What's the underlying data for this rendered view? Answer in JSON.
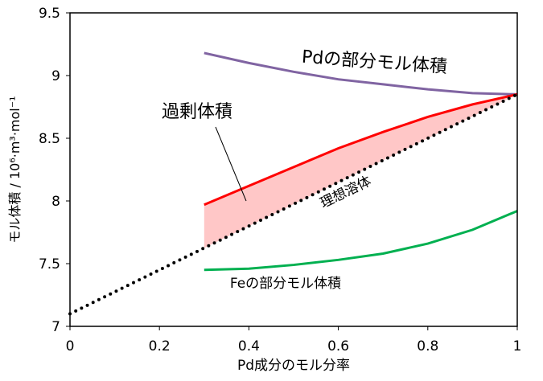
{
  "chart_data": {
    "type": "line",
    "xlabel": "Pd成分のモル分率",
    "ylabel": "モル体積 / 10⁶·m³·mol⁻¹",
    "xlim": [
      0,
      1
    ],
    "xticks": [
      0,
      0.2,
      0.4,
      0.6,
      0.8,
      1
    ],
    "ylim": [
      7,
      9.5
    ],
    "yticks": [
      7,
      7.5,
      8,
      8.5,
      9,
      9.5
    ],
    "grid": false,
    "series": [
      {
        "name": "Pdの部分モル体積",
        "color": "#8064a2",
        "style": "solid",
        "x": [
          0.3,
          0.4,
          0.5,
          0.6,
          0.7,
          0.8,
          0.9,
          1.0
        ],
        "values": [
          9.18,
          9.1,
          9.03,
          8.97,
          8.93,
          8.89,
          8.86,
          8.85
        ]
      },
      {
        "name": "過剰体積",
        "color": "#ff0000",
        "style": "solid",
        "fill": "#ffc7c7",
        "x": [
          0.3,
          0.4,
          0.5,
          0.6,
          0.7,
          0.8,
          0.9,
          1.0
        ],
        "values": [
          7.97,
          8.12,
          8.27,
          8.42,
          8.55,
          8.67,
          8.77,
          8.85
        ]
      },
      {
        "name": "理想溶体",
        "color": "#000000",
        "style": "dotted",
        "x": [
          0,
          1
        ],
        "values": [
          7.1,
          8.85
        ]
      },
      {
        "name": "Feの部分モル体積",
        "color": "#00b050",
        "style": "solid",
        "x": [
          0.3,
          0.4,
          0.5,
          0.6,
          0.7,
          0.8,
          0.9,
          1.0
        ],
        "values": [
          7.45,
          7.46,
          7.49,
          7.53,
          7.58,
          7.66,
          7.77,
          7.92
        ]
      }
    ]
  }
}
